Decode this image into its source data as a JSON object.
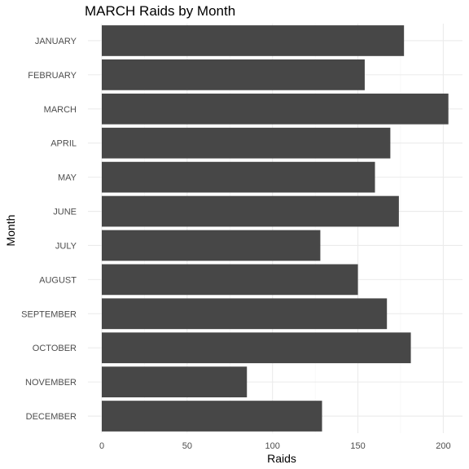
{
  "chart_data": {
    "type": "bar",
    "orientation": "horizontal",
    "title": "MARCH Raids by Month",
    "xlabel": "Raids",
    "ylabel": "Month",
    "categories": [
      "JANUARY",
      "FEBRUARY",
      "MARCH",
      "APRIL",
      "MAY",
      "JUNE",
      "JULY",
      "AUGUST",
      "SEPTEMBER",
      "OCTOBER",
      "NOVEMBER",
      "DECEMBER"
    ],
    "values": [
      177,
      154,
      203,
      169,
      160,
      174,
      128,
      150,
      167,
      181,
      85,
      129
    ],
    "xlim": [
      0,
      210
    ],
    "xticks": [
      0,
      50,
      100,
      150,
      200
    ],
    "grid": true,
    "bar_color": "#474747",
    "grid_color": "#ebebeb"
  }
}
